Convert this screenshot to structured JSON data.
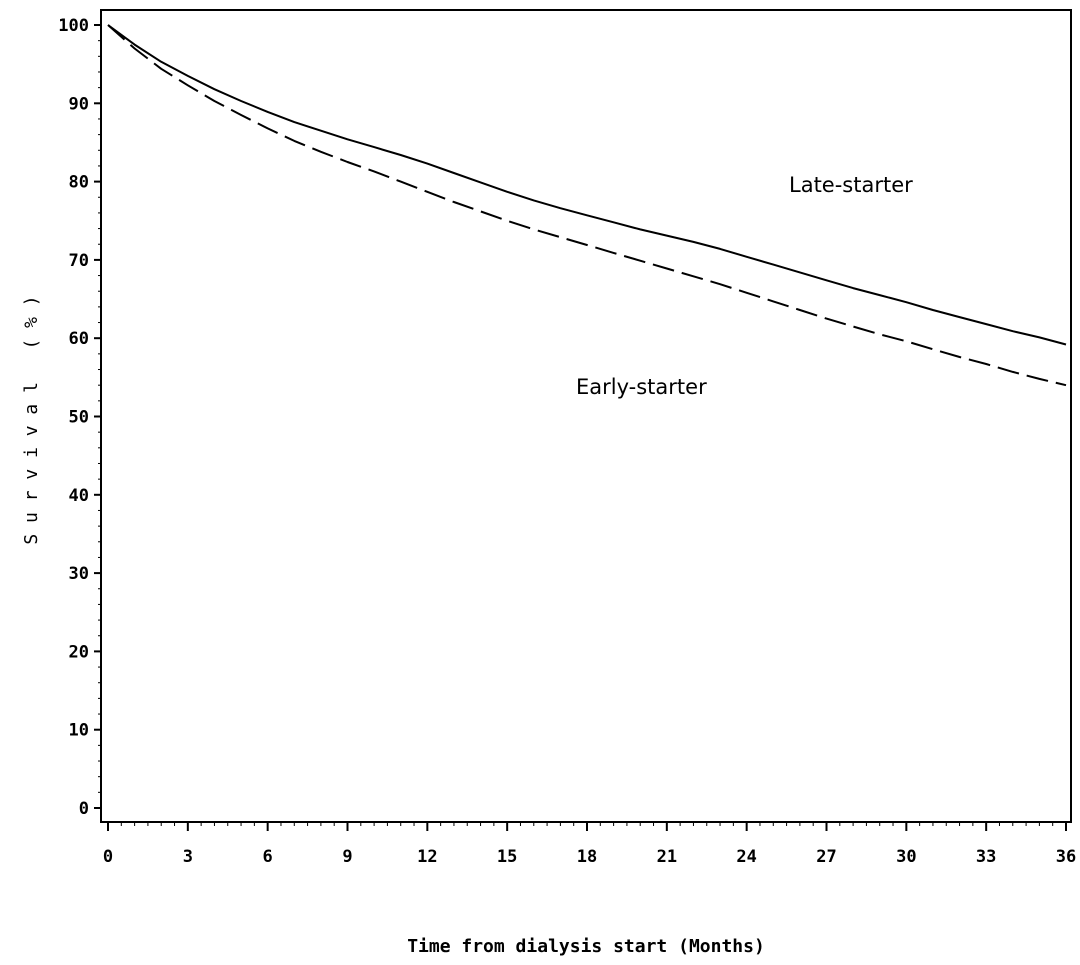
{
  "chart_data": {
    "type": "line",
    "title": "",
    "xlabel": "Time from dialysis start (Months)",
    "ylabel": "S u r v i v a l   ( % )",
    "xlim": [
      0,
      36
    ],
    "ylim": [
      0,
      100
    ],
    "xticks": [
      "0",
      "3",
      "6",
      "9",
      "12",
      "15",
      "18",
      "21",
      "24",
      "27",
      "30",
      "33",
      "36"
    ],
    "yticks": [
      "0",
      "10",
      "20",
      "30",
      "40",
      "50",
      "60",
      "70",
      "80",
      "90",
      "100"
    ],
    "grid": false,
    "series": [
      {
        "name": "Late-starter",
        "style": "solid",
        "x": [
          0,
          1,
          2,
          3,
          4,
          5,
          6,
          7,
          8,
          9,
          10,
          11,
          12,
          13,
          14,
          15,
          16,
          17,
          18,
          19,
          20,
          21,
          22,
          23,
          24,
          25,
          26,
          27,
          28,
          29,
          30,
          31,
          32,
          33,
          34,
          35,
          36
        ],
        "y": [
          100,
          97.5,
          95.3,
          93.5,
          91.8,
          90.3,
          88.9,
          87.6,
          86.5,
          85.4,
          84.4,
          83.4,
          82.3,
          81.1,
          79.9,
          78.7,
          77.6,
          76.6,
          75.7,
          74.8,
          73.9,
          73.1,
          72.3,
          71.4,
          70.4,
          69.4,
          68.4,
          67.4,
          66.4,
          65.5,
          64.6,
          63.6,
          62.7,
          61.8,
          60.9,
          60.1,
          59.2
        ]
      },
      {
        "name": "Early-starter",
        "style": "dashed",
        "x": [
          0,
          1,
          2,
          3,
          4,
          5,
          6,
          7,
          8,
          9,
          10,
          11,
          12,
          13,
          14,
          15,
          16,
          17,
          18,
          19,
          20,
          21,
          22,
          23,
          24,
          25,
          26,
          27,
          28,
          29,
          30,
          31,
          32,
          33,
          34,
          35,
          36
        ],
        "y": [
          100,
          97.0,
          94.4,
          92.3,
          90.3,
          88.5,
          86.8,
          85.2,
          83.8,
          82.5,
          81.3,
          80.0,
          78.7,
          77.4,
          76.2,
          75.0,
          73.9,
          72.9,
          71.9,
          70.9,
          69.9,
          68.9,
          67.9,
          66.9,
          65.8,
          64.7,
          63.6,
          62.5,
          61.5,
          60.5,
          59.6,
          58.6,
          57.6,
          56.7,
          55.7,
          54.8,
          54.0
        ]
      }
    ],
    "annotations": [
      "Late-starter",
      "Early-starter"
    ]
  }
}
